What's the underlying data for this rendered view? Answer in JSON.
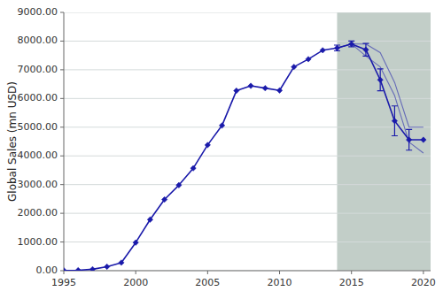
{
  "chart_data": {
    "type": "line",
    "ylabel": "Global Sales (mn USD)",
    "x": [
      1995,
      1996,
      1997,
      1998,
      1999,
      2000,
      2001,
      2002,
      2003,
      2004,
      2005,
      2006,
      2007,
      2008,
      2009,
      2010,
      2011,
      2012,
      2013,
      2014,
      2015,
      2016,
      2017,
      2018,
      2019,
      2020
    ],
    "series": [
      {
        "color": "#1a1aaa",
        "marker": "diamond",
        "line_style": "solid",
        "values": [
          10,
          15,
          50,
          140,
          280,
          980,
          1780,
          2480,
          2980,
          3570,
          4380,
          5060,
          6270,
          6440,
          6360,
          6280,
          7100,
          7370,
          7680,
          7760,
          7900,
          7700,
          6650,
          5220,
          4560,
          4560
        ],
        "errors_upper": [
          0,
          0,
          0,
          0,
          0,
          0,
          0,
          0,
          0,
          0,
          0,
          0,
          0,
          0,
          0,
          0,
          0,
          0,
          0,
          100,
          100,
          220,
          380,
          520,
          360,
          0
        ],
        "errors_lower": [
          0,
          0,
          0,
          0,
          0,
          0,
          0,
          0,
          0,
          0,
          0,
          0,
          0,
          0,
          0,
          0,
          0,
          0,
          0,
          100,
          100,
          220,
          380,
          520,
          360,
          0
        ]
      },
      {
        "color": "#1a1aaa",
        "line_style": "solid",
        "x": [
          2014,
          2015,
          2016,
          2017,
          2018,
          2019,
          2020
        ],
        "values": [
          7760,
          7900,
          7900,
          7600,
          6560,
          5000,
          5000
        ]
      },
      {
        "color": "#1a1aaa",
        "line_style": "solid",
        "x": [
          2014,
          2015,
          2016,
          2017,
          2018,
          2019,
          2020
        ],
        "values": [
          7760,
          7900,
          7480,
          7100,
          6100,
          4480,
          4100
        ]
      }
    ],
    "shaded_region": {
      "from": 2014,
      "color": "#c2cec8"
    },
    "xlim": [
      1995,
      2020.5
    ],
    "ylim": [
      0,
      9000
    ],
    "xticks": [
      1995,
      2000,
      2005,
      2010,
      2015,
      2020
    ],
    "yticks": [
      {
        "value": 0,
        "label": "0.00"
      },
      {
        "value": 1000,
        "label": "1000.00"
      },
      {
        "value": 2000,
        "label": "2000.00"
      },
      {
        "value": 3000,
        "label": "3000.00"
      },
      {
        "value": 4000,
        "label": "4000.00"
      },
      {
        "value": 5000,
        "label": "5000.00"
      },
      {
        "value": 6000,
        "label": "6000.00"
      },
      {
        "value": 7000,
        "label": "7000.00"
      },
      {
        "value": 8000,
        "label": "8000.00"
      },
      {
        "value": 9000,
        "label": "9000.00"
      }
    ],
    "grid": true
  }
}
